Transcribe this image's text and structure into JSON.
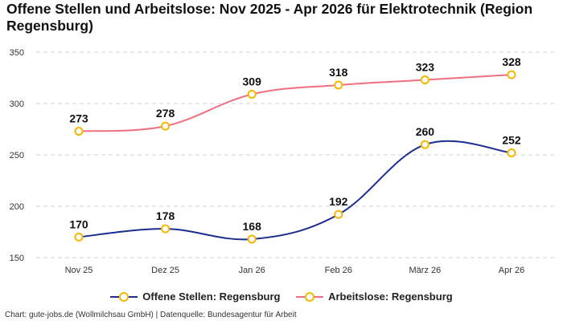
{
  "chart_data": {
    "type": "line",
    "title": "Offene Stellen und Arbeitslose: Nov 2025 - Apr 2026 für Elektrotechnik (Region Regensburg)",
    "categories": [
      "Nov 25",
      "Dez 25",
      "Jan 26",
      "Feb 26",
      "März 26",
      "Apr 26"
    ],
    "series": [
      {
        "name": "Offene Stellen: Regensburg",
        "values": [
          170,
          178,
          168,
          192,
          260,
          252
        ],
        "color": "#1a2e8f"
      },
      {
        "name": "Arbeitslose: Regensburg",
        "values": [
          273,
          278,
          309,
          318,
          323,
          328
        ],
        "color": "#f07080"
      }
    ],
    "marker_color": "#f5b800",
    "ylim": [
      150,
      350
    ],
    "yticks": [
      150,
      200,
      250,
      300,
      350
    ],
    "grid": true,
    "legend_position": "bottom"
  },
  "footer": "Chart: gute-jobs.de (Wollmilchsau GmbH) | Datenquelle: Bundesagentur für Arbeit"
}
